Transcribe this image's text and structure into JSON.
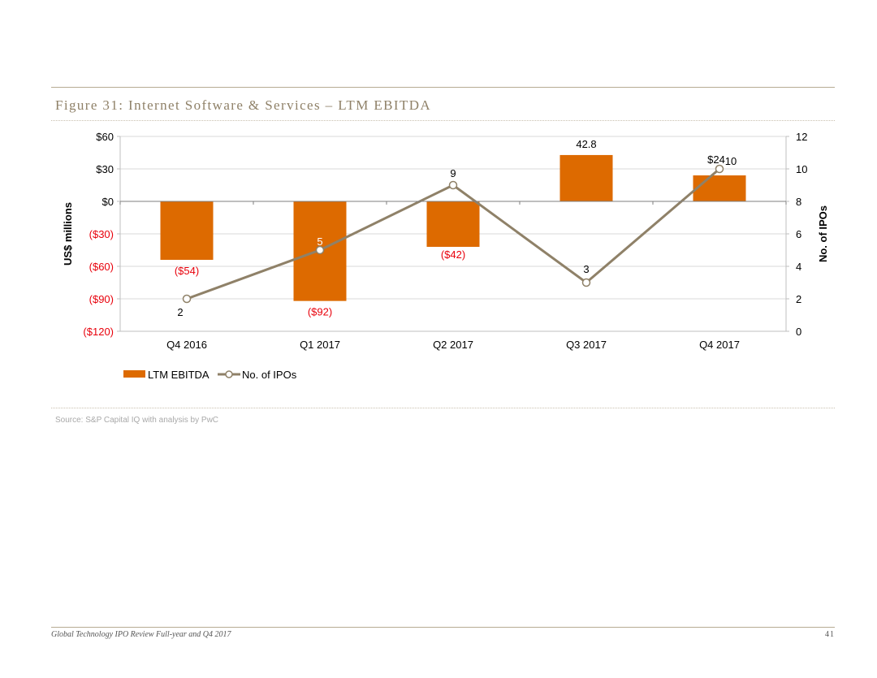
{
  "figure": {
    "title": "Figure 31: Internet Software & Services – LTM EBITDA",
    "source": "Source: S&P Capital IQ with analysis by PwC"
  },
  "footer": {
    "left": "Global Technology IPO Review Full-year and Q4 2017",
    "page_number": "41"
  },
  "colors": {
    "bar": "#dd6a00",
    "line": "#8f8168",
    "negative_label": "#e8000b",
    "grid": "#d9d9d9",
    "text": "#000000"
  },
  "chart_data": {
    "type": "bar+line",
    "categories": [
      "Q4 2016",
      "Q1 2017",
      "Q2 2017",
      "Q3 2017",
      "Q4 2017"
    ],
    "series": [
      {
        "name": "LTM EBITDA",
        "type": "bar",
        "axis": "left",
        "values": [
          -54,
          -92,
          -42,
          42.8,
          24
        ],
        "labels": [
          "($54)",
          "($92)",
          "($42)",
          "42.8",
          "$24"
        ]
      },
      {
        "name": "No. of IPOs",
        "type": "line",
        "axis": "right",
        "values": [
          2,
          5,
          9,
          3,
          10
        ],
        "labels": [
          "2",
          "5",
          "9",
          "3",
          "10"
        ]
      }
    ],
    "y_left": {
      "label": "US$ millions",
      "range": [
        -120,
        60
      ],
      "ticks": [
        60,
        30,
        0,
        -30,
        -60,
        -90,
        -120
      ],
      "tick_labels": [
        "$60",
        "$30",
        "$0",
        "($30)",
        "($60)",
        "($90)",
        "($120)"
      ]
    },
    "y_right": {
      "label": "No. of IPOs",
      "range": [
        0,
        12
      ],
      "ticks": [
        12,
        10,
        8,
        6,
        4,
        2,
        0
      ],
      "tick_labels": [
        "12",
        "10",
        "8",
        "6",
        "4",
        "2",
        "0"
      ]
    },
    "grid": true,
    "legend": {
      "position": "bottom-left",
      "entries": [
        "LTM EBITDA",
        "No. of IPOs"
      ]
    }
  }
}
